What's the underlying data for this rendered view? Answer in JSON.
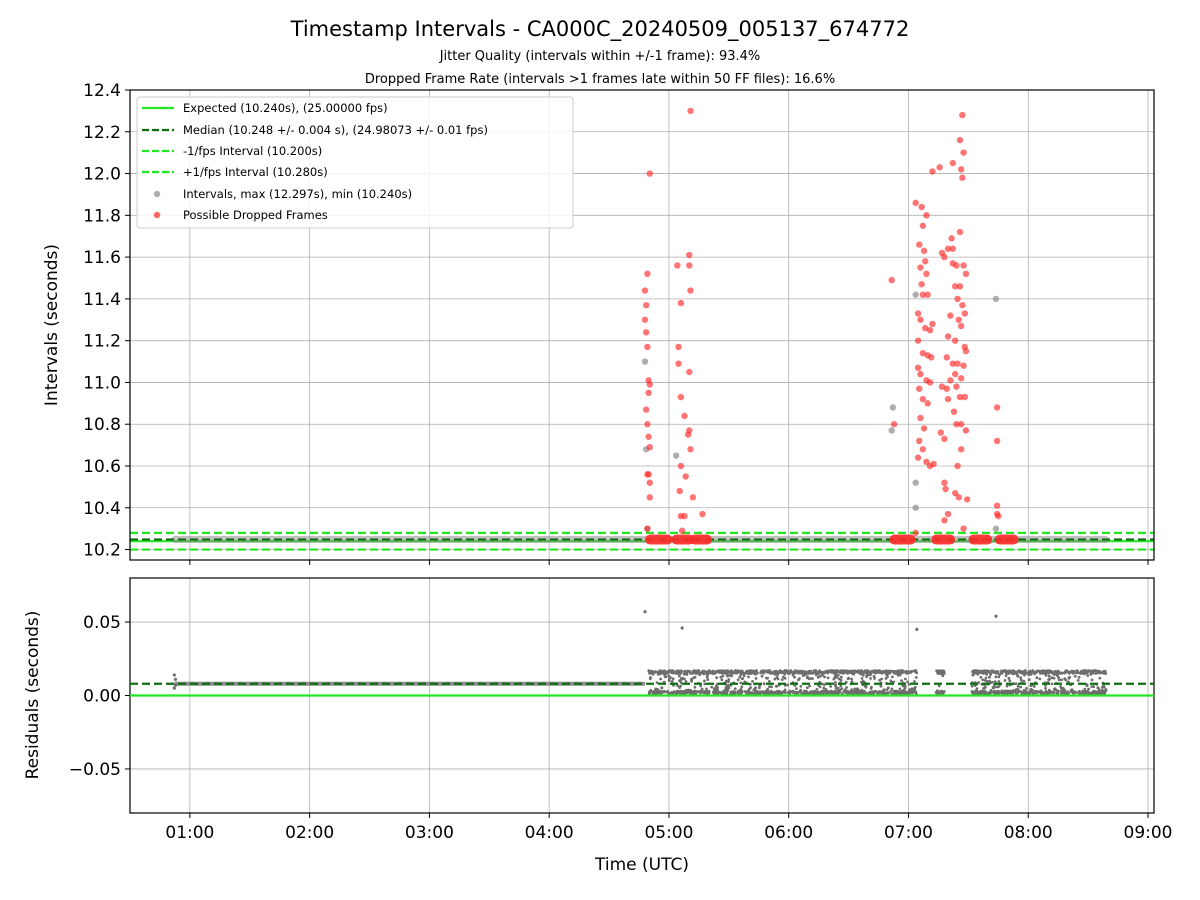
{
  "figure": {
    "title": "Timestamp Intervals - CA000C_20240509_005137_674772",
    "subtitle1": "Jitter Quality (intervals within +/-1 frame): 93.4%",
    "subtitle2": "Dropped Frame Rate (intervals >1 frames late within 50 FF files): 16.6%"
  },
  "colors": {
    "expected": "#22e822",
    "median": "#107010",
    "interval_points": "#8c8c8c",
    "dropped_points": "#ff2a2a",
    "residual_points": "#6e6e6e",
    "grid": "#b0b0b0"
  },
  "chart_data": [
    {
      "type": "scatter",
      "name": "intervals",
      "xlabel": "",
      "ylabel": "Intervals (seconds)",
      "xlim": [
        0.5,
        9.05
      ],
      "ylim": [
        10.15,
        12.4
      ],
      "x_ticks": [
        1,
        2,
        3,
        4,
        5,
        6,
        7,
        8,
        9
      ],
      "y_ticks": [
        10.2,
        10.4,
        10.6,
        10.8,
        11.0,
        11.2,
        11.4,
        11.6,
        11.8,
        12.0,
        12.2,
        12.4
      ],
      "y_tick_labels": [
        "10.2",
        "10.4",
        "10.6",
        "10.8",
        "11.0",
        "11.2",
        "11.4",
        "11.6",
        "11.8",
        "12.0",
        "12.2",
        "12.4"
      ],
      "grid": true,
      "legend_position": "top-left",
      "lines": [
        {
          "name": "Expected (10.240s), (25.00000 fps)",
          "y": 10.24,
          "style": "solid",
          "color": "#22e822"
        },
        {
          "name": "Median (10.248 +/- 0.004 s), (24.98073 +/- 0.01 fps)",
          "y": 10.248,
          "style": "dashed",
          "color": "#107010"
        },
        {
          "name": "-1/fps Interval (10.200s)",
          "y": 10.2,
          "style": "dashed",
          "color": "#22e822"
        },
        {
          "name": "+1/fps Interval (10.280s)",
          "y": 10.28,
          "style": "dashed",
          "color": "#22e822"
        }
      ],
      "series": [
        {
          "name": "Intervals, max (12.297s), min (10.240s)",
          "color": "#8c8c8c",
          "baseline": {
            "x_start": 0.87,
            "x_end": 8.65,
            "y": 10.248
          },
          "points": [
            [
              4.8,
              11.1
            ],
            [
              4.81,
              10.68
            ],
            [
              4.82,
              10.3
            ],
            [
              5.06,
              10.65
            ],
            [
              6.87,
              10.88
            ],
            [
              6.86,
              10.77
            ],
            [
              7.06,
              11.42
            ],
            [
              7.06,
              10.52
            ],
            [
              7.06,
              10.4
            ],
            [
              7.73,
              11.4
            ],
            [
              7.73,
              10.3
            ]
          ]
        },
        {
          "name": "Possible Dropped Frames",
          "color": "#ff2a2a",
          "cluster_bands": [
            {
              "x_start": 4.83,
              "x_end": 5.0,
              "y": 10.248
            },
            {
              "x_start": 5.05,
              "x_end": 5.18,
              "y": 10.248
            },
            {
              "x_start": 5.2,
              "x_end": 5.33,
              "y": 10.248
            },
            {
              "x_start": 6.87,
              "x_end": 7.03,
              "y": 10.248
            },
            {
              "x_start": 7.22,
              "x_end": 7.36,
              "y": 10.248
            },
            {
              "x_start": 7.53,
              "x_end": 7.67,
              "y": 10.248
            },
            {
              "x_start": 7.75,
              "x_end": 7.89,
              "y": 10.248
            }
          ],
          "points": [
            [
              4.84,
              12.0
            ],
            [
              4.82,
              11.52
            ],
            [
              4.8,
              11.44
            ],
            [
              4.81,
              11.37
            ],
            [
              4.8,
              11.3
            ],
            [
              4.81,
              11.24
            ],
            [
              4.82,
              11.17
            ],
            [
              4.83,
              11.01
            ],
            [
              4.84,
              10.99
            ],
            [
              4.83,
              10.95
            ],
            [
              4.81,
              10.87
            ],
            [
              4.82,
              10.8
            ],
            [
              4.83,
              10.74
            ],
            [
              4.84,
              10.69
            ],
            [
              4.82,
              10.56
            ],
            [
              4.83,
              10.56
            ],
            [
              4.84,
              10.52
            ],
            [
              4.84,
              10.45
            ],
            [
              4.82,
              10.3
            ],
            [
              5.18,
              12.3
            ],
            [
              5.17,
              11.61
            ],
            [
              5.17,
              11.56
            ],
            [
              5.07,
              11.56
            ],
            [
              5.18,
              11.44
            ],
            [
              5.1,
              11.38
            ],
            [
              5.08,
              11.17
            ],
            [
              5.08,
              11.09
            ],
            [
              5.17,
              11.05
            ],
            [
              5.1,
              10.93
            ],
            [
              5.13,
              10.84
            ],
            [
              5.17,
              10.77
            ],
            [
              5.16,
              10.75
            ],
            [
              5.18,
              10.68
            ],
            [
              5.1,
              10.6
            ],
            [
              5.14,
              10.55
            ],
            [
              5.09,
              10.48
            ],
            [
              5.2,
              10.45
            ],
            [
              5.1,
              10.36
            ],
            [
              5.13,
              10.36
            ],
            [
              5.28,
              10.37
            ],
            [
              5.11,
              10.29
            ],
            [
              6.86,
              11.49
            ],
            [
              6.88,
              10.8
            ],
            [
              7.06,
              11.86
            ],
            [
              7.11,
              11.84
            ],
            [
              7.15,
              11.8
            ],
            [
              7.12,
              11.75
            ],
            [
              7.09,
              11.66
            ],
            [
              7.13,
              11.63
            ],
            [
              7.1,
              11.55
            ],
            [
              7.14,
              11.58
            ],
            [
              7.15,
              11.52
            ],
            [
              7.11,
              11.47
            ],
            [
              7.12,
              11.42
            ],
            [
              7.16,
              11.42
            ],
            [
              7.08,
              11.33
            ],
            [
              7.1,
              11.3
            ],
            [
              7.14,
              11.26
            ],
            [
              7.18,
              11.25
            ],
            [
              7.2,
              11.28
            ],
            [
              7.08,
              11.2
            ],
            [
              7.12,
              11.14
            ],
            [
              7.16,
              11.13
            ],
            [
              7.19,
              11.12
            ],
            [
              7.08,
              11.07
            ],
            [
              7.1,
              11.04
            ],
            [
              7.15,
              11.01
            ],
            [
              7.18,
              11.0
            ],
            [
              7.09,
              10.97
            ],
            [
              7.12,
              10.92
            ],
            [
              7.16,
              10.9
            ],
            [
              7.1,
              10.83
            ],
            [
              7.13,
              10.78
            ],
            [
              7.09,
              10.72
            ],
            [
              7.12,
              10.68
            ],
            [
              7.15,
              10.62
            ],
            [
              7.08,
              10.64
            ],
            [
              7.18,
              10.6
            ],
            [
              7.21,
              10.61
            ],
            [
              7.06,
              10.28
            ],
            [
              7.2,
              12.01
            ],
            [
              7.26,
              12.03
            ],
            [
              7.37,
              12.05
            ],
            [
              7.45,
              12.28
            ],
            [
              7.43,
              12.16
            ],
            [
              7.46,
              12.1
            ],
            [
              7.44,
              12.02
            ],
            [
              7.45,
              11.98
            ],
            [
              7.43,
              11.72
            ],
            [
              7.36,
              11.69
            ],
            [
              7.33,
              11.64
            ],
            [
              7.37,
              11.64
            ],
            [
              7.28,
              11.62
            ],
            [
              7.3,
              11.6
            ],
            [
              7.37,
              11.57
            ],
            [
              7.4,
              11.56
            ],
            [
              7.46,
              11.56
            ],
            [
              7.48,
              11.52
            ],
            [
              7.39,
              11.46
            ],
            [
              7.43,
              11.46
            ],
            [
              7.41,
              11.4
            ],
            [
              7.45,
              11.37
            ],
            [
              7.47,
              11.33
            ],
            [
              7.35,
              11.32
            ],
            [
              7.42,
              11.3
            ],
            [
              7.44,
              11.27
            ],
            [
              7.33,
              11.22
            ],
            [
              7.39,
              11.2
            ],
            [
              7.47,
              11.17
            ],
            [
              7.48,
              11.15
            ],
            [
              7.32,
              11.12
            ],
            [
              7.37,
              11.09
            ],
            [
              7.41,
              11.09
            ],
            [
              7.46,
              11.08
            ],
            [
              7.39,
              11.04
            ],
            [
              7.35,
              11.01
            ],
            [
              7.44,
              11.02
            ],
            [
              7.28,
              10.98
            ],
            [
              7.32,
              10.97
            ],
            [
              7.4,
              10.98
            ],
            [
              7.43,
              10.93
            ],
            [
              7.47,
              10.93
            ],
            [
              7.33,
              10.92
            ],
            [
              7.38,
              10.86
            ],
            [
              7.44,
              10.8
            ],
            [
              7.4,
              10.8
            ],
            [
              7.48,
              10.77
            ],
            [
              7.27,
              10.76
            ],
            [
              7.3,
              10.73
            ],
            [
              7.44,
              10.68
            ],
            [
              7.41,
              10.6
            ],
            [
              7.3,
              10.52
            ],
            [
              7.31,
              10.49
            ],
            [
              7.39,
              10.47
            ],
            [
              7.42,
              10.45
            ],
            [
              7.49,
              10.44
            ],
            [
              7.33,
              10.37
            ],
            [
              7.3,
              10.34
            ],
            [
              7.46,
              10.3
            ],
            [
              7.74,
              10.88
            ],
            [
              7.74,
              10.72
            ],
            [
              7.74,
              10.41
            ],
            [
              7.74,
              10.37
            ],
            [
              7.75,
              10.36
            ]
          ]
        }
      ]
    },
    {
      "type": "scatter",
      "name": "residuals",
      "xlabel": "Time (UTC)",
      "ylabel": "Residuals (seconds)",
      "xlim": [
        0.5,
        9.05
      ],
      "ylim": [
        -0.08,
        0.08
      ],
      "x_ticks": [
        1,
        2,
        3,
        4,
        5,
        6,
        7,
        8,
        9
      ],
      "x_tick_labels": [
        "01:00",
        "02:00",
        "03:00",
        "04:00",
        "05:00",
        "06:00",
        "07:00",
        "08:00",
        "09:00"
      ],
      "y_ticks": [
        0.05,
        0.0,
        -0.05
      ],
      "y_tick_labels": [
        "0.05",
        "0.00",
        "−0.05"
      ],
      "grid": true,
      "lines": [
        {
          "name": "expected",
          "y": 0.0,
          "style": "solid",
          "color": "#22e822"
        },
        {
          "name": "median",
          "y": 0.008,
          "style": "dashed",
          "color": "#107010"
        }
      ],
      "steady_band": {
        "x_start": 0.87,
        "x_end": 4.8,
        "y": 0.008
      },
      "jitter_segments": [
        {
          "x_start": 4.83,
          "x_end": 7.07,
          "y_low": 0.001,
          "y_high": 0.017
        },
        {
          "x_start": 7.23,
          "x_end": 7.3,
          "y_low": 0.001,
          "y_high": 0.017
        },
        {
          "x_start": 7.53,
          "x_end": 8.65,
          "y_low": 0.001,
          "y_high": 0.017
        }
      ],
      "points": [
        [
          0.87,
          0.014
        ],
        [
          0.88,
          0.011
        ],
        [
          0.87,
          0.005
        ],
        [
          0.88,
          0.007
        ],
        [
          4.8,
          0.057
        ],
        [
          5.11,
          0.046
        ],
        [
          7.07,
          0.045
        ],
        [
          7.73,
          0.054
        ]
      ]
    }
  ]
}
